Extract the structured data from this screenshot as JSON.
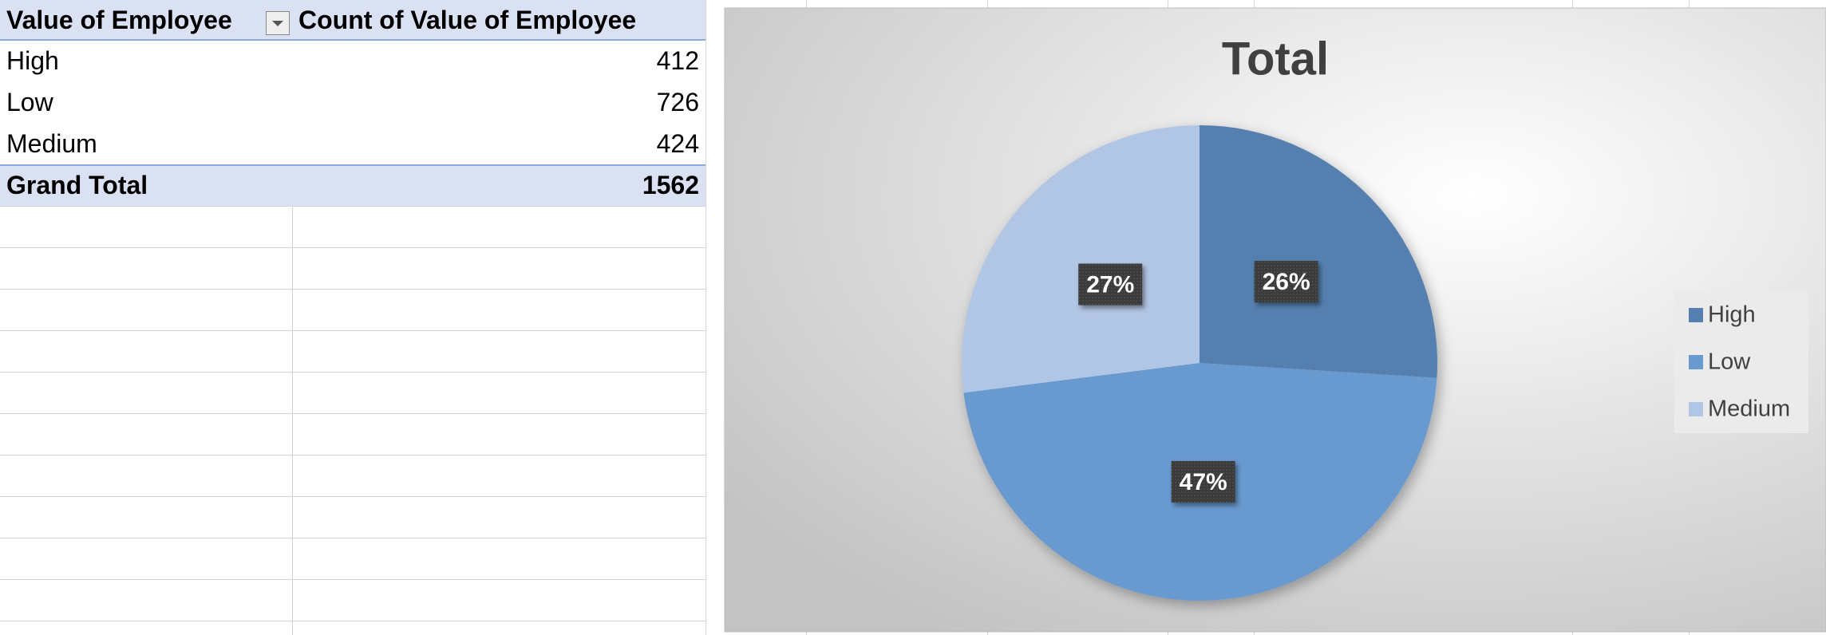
{
  "table": {
    "headers": [
      "Value of Employee",
      "Count of Value of Employee"
    ],
    "rows": [
      [
        "High",
        412
      ],
      [
        "Low",
        726
      ],
      [
        "Medium",
        424
      ]
    ],
    "total": [
      "Grand Total",
      1562
    ]
  },
  "chart_data": {
    "type": "pie",
    "title": "Total",
    "categories": [
      "High",
      "Low",
      "Medium"
    ],
    "values": [
      26,
      47,
      27
    ],
    "value_labels": [
      "26%",
      "47%",
      "27%"
    ],
    "colors": [
      "#557fae",
      "#6899cf",
      "#b1c5e4"
    ],
    "legend": "right"
  }
}
